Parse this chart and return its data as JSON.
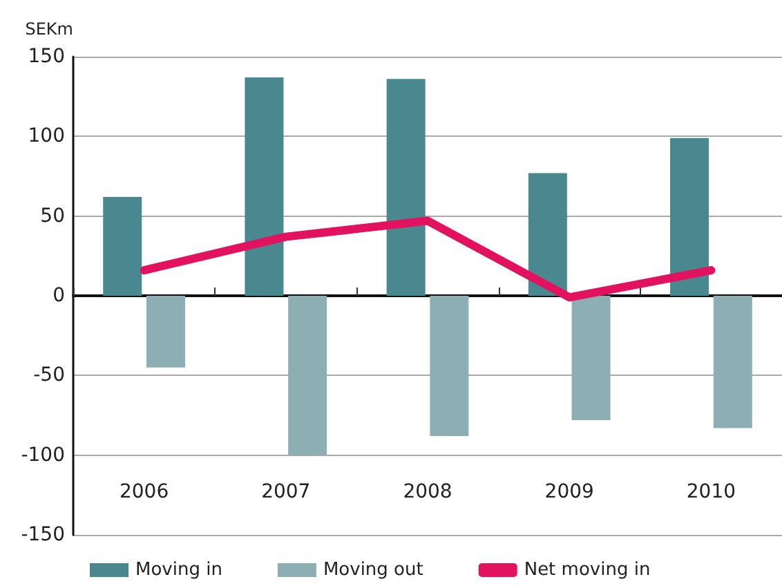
{
  "chart_data": {
    "type": "bar",
    "ylabel": "SEKm",
    "categories": [
      "2006",
      "2007",
      "2008",
      "2009",
      "2010"
    ],
    "series": [
      {
        "name": "Moving in",
        "color": "#4a8890",
        "values": [
          62,
          137,
          136,
          77,
          99
        ]
      },
      {
        "name": "Moving out",
        "color": "#8daeb2",
        "values": [
          -45,
          -100,
          -88,
          -78,
          -83
        ]
      },
      {
        "name": "Net moving in",
        "type": "line",
        "color": "#e2125f",
        "values": [
          16,
          37,
          47,
          -1,
          16
        ]
      }
    ],
    "ylim": [
      -150,
      150
    ],
    "yticks": [
      -150,
      -100,
      -50,
      0,
      50,
      100,
      150
    ],
    "grid": "y",
    "legend": "bottom",
    "marker": "none"
  }
}
